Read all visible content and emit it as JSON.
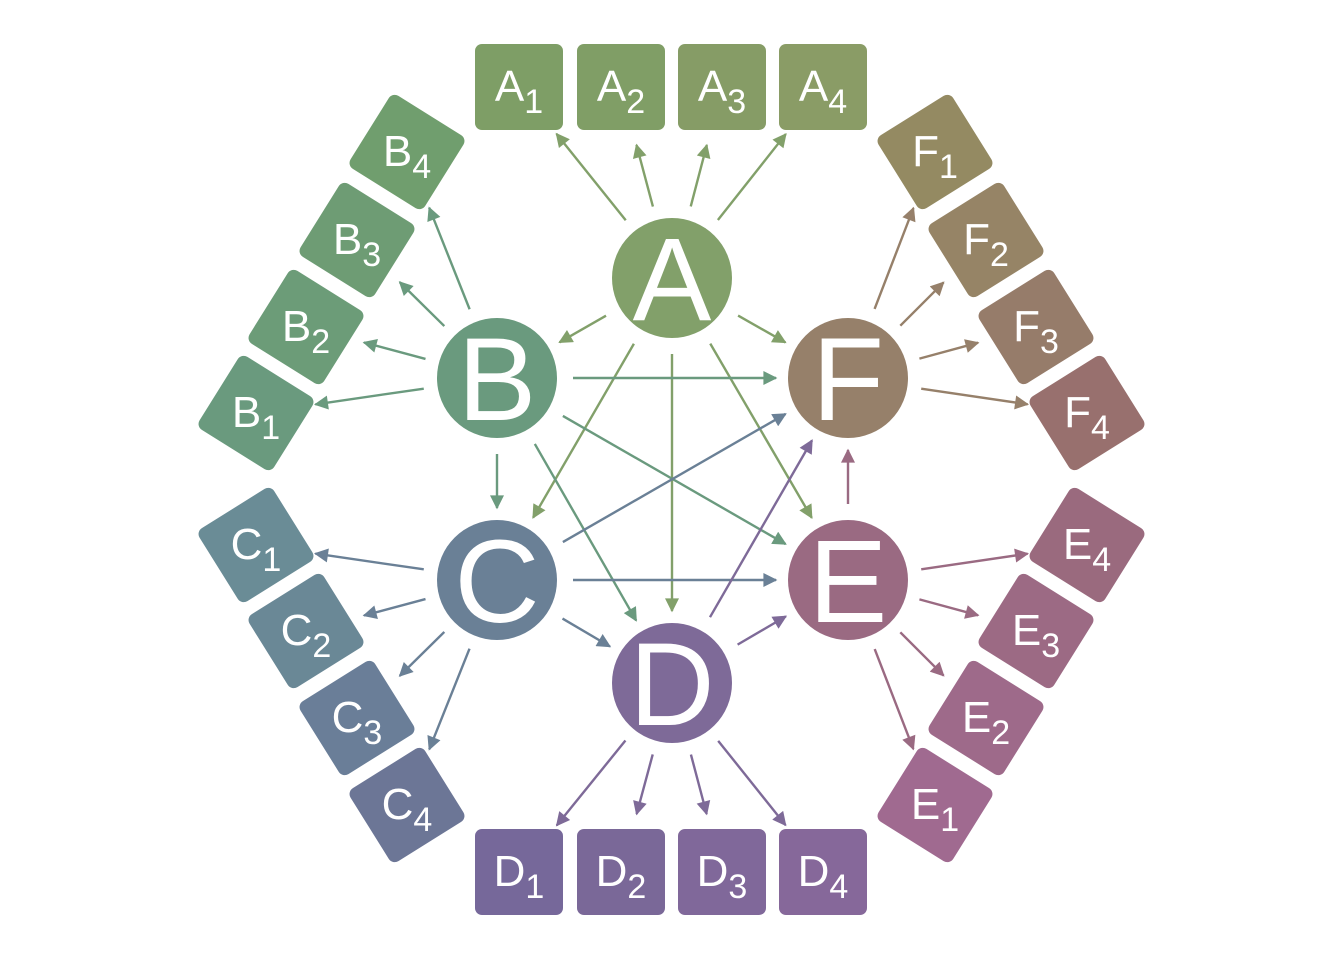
{
  "hubs": [
    {
      "id": "A",
      "label": "A",
      "color": "#82a06a"
    },
    {
      "id": "B",
      "label": "B",
      "color": "#6a9a7e"
    },
    {
      "id": "C",
      "label": "C",
      "color": "#6a8096"
    },
    {
      "id": "D",
      "label": "D",
      "color": "#7e6a98"
    },
    {
      "id": "E",
      "label": "E",
      "color": "#9a6a82"
    },
    {
      "id": "F",
      "label": "F",
      "color": "#96806a"
    }
  ],
  "leaves": [
    {
      "id": "A1",
      "letter": "A",
      "sub": "1",
      "hub": "A",
      "color": "#7e9e66"
    },
    {
      "id": "A2",
      "letter": "A",
      "sub": "2",
      "hub": "A",
      "color": "#809e66"
    },
    {
      "id": "A3",
      "letter": "A",
      "sub": "3",
      "hub": "A",
      "color": "#869c66"
    },
    {
      "id": "A4",
      "letter": "A",
      "sub": "4",
      "hub": "A",
      "color": "#8a9c66"
    },
    {
      "id": "B1",
      "letter": "B",
      "sub": "1",
      "hub": "B",
      "color": "#6a9a7e"
    },
    {
      "id": "B2",
      "letter": "B",
      "sub": "2",
      "hub": "B",
      "color": "#6c9c78"
    },
    {
      "id": "B3",
      "letter": "B",
      "sub": "3",
      "hub": "B",
      "color": "#6e9c74"
    },
    {
      "id": "B4",
      "letter": "B",
      "sub": "4",
      "hub": "B",
      "color": "#709e6e"
    },
    {
      "id": "C1",
      "letter": "C",
      "sub": "1",
      "hub": "C",
      "color": "#6a8c96"
    },
    {
      "id": "C2",
      "letter": "C",
      "sub": "2",
      "hub": "C",
      "color": "#6a8896"
    },
    {
      "id": "C3",
      "letter": "C",
      "sub": "3",
      "hub": "C",
      "color": "#6a7e98"
    },
    {
      "id": "C4",
      "letter": "C",
      "sub": "4",
      "hub": "C",
      "color": "#6c7696"
    },
    {
      "id": "D1",
      "letter": "D",
      "sub": "1",
      "hub": "D",
      "color": "#76689a"
    },
    {
      "id": "D2",
      "letter": "D",
      "sub": "2",
      "hub": "D",
      "color": "#7a6898"
    },
    {
      "id": "D3",
      "letter": "D",
      "sub": "3",
      "hub": "D",
      "color": "#80689a"
    },
    {
      "id": "D4",
      "letter": "D",
      "sub": "4",
      "hub": "D",
      "color": "#86689a"
    },
    {
      "id": "E1",
      "letter": "E",
      "sub": "1",
      "hub": "E",
      "color": "#a06a90"
    },
    {
      "id": "E2",
      "letter": "E",
      "sub": "2",
      "hub": "E",
      "color": "#9e6a8a"
    },
    {
      "id": "E3",
      "letter": "E",
      "sub": "3",
      "hub": "E",
      "color": "#9c6a84"
    },
    {
      "id": "E4",
      "letter": "E",
      "sub": "4",
      "hub": "E",
      "color": "#9a6a7e"
    },
    {
      "id": "F1",
      "letter": "F",
      "sub": "1",
      "hub": "F",
      "color": "#948a62"
    },
    {
      "id": "F2",
      "letter": "F",
      "sub": "2",
      "hub": "F",
      "color": "#968466"
    },
    {
      "id": "F3",
      "letter": "F",
      "sub": "3",
      "hub": "F",
      "color": "#967c6a"
    },
    {
      "id": "F4",
      "letter": "F",
      "sub": "4",
      "hub": "F",
      "color": "#98706e"
    }
  ],
  "hub_edges": [
    [
      "A",
      "B"
    ],
    [
      "A",
      "C"
    ],
    [
      "A",
      "D"
    ],
    [
      "A",
      "E"
    ],
    [
      "A",
      "F"
    ],
    [
      "B",
      "C"
    ],
    [
      "B",
      "D"
    ],
    [
      "B",
      "E"
    ],
    [
      "B",
      "F"
    ],
    [
      "C",
      "D"
    ],
    [
      "C",
      "E"
    ],
    [
      "C",
      "F"
    ],
    [
      "D",
      "E"
    ],
    [
      "D",
      "F"
    ],
    [
      "E",
      "F"
    ]
  ]
}
